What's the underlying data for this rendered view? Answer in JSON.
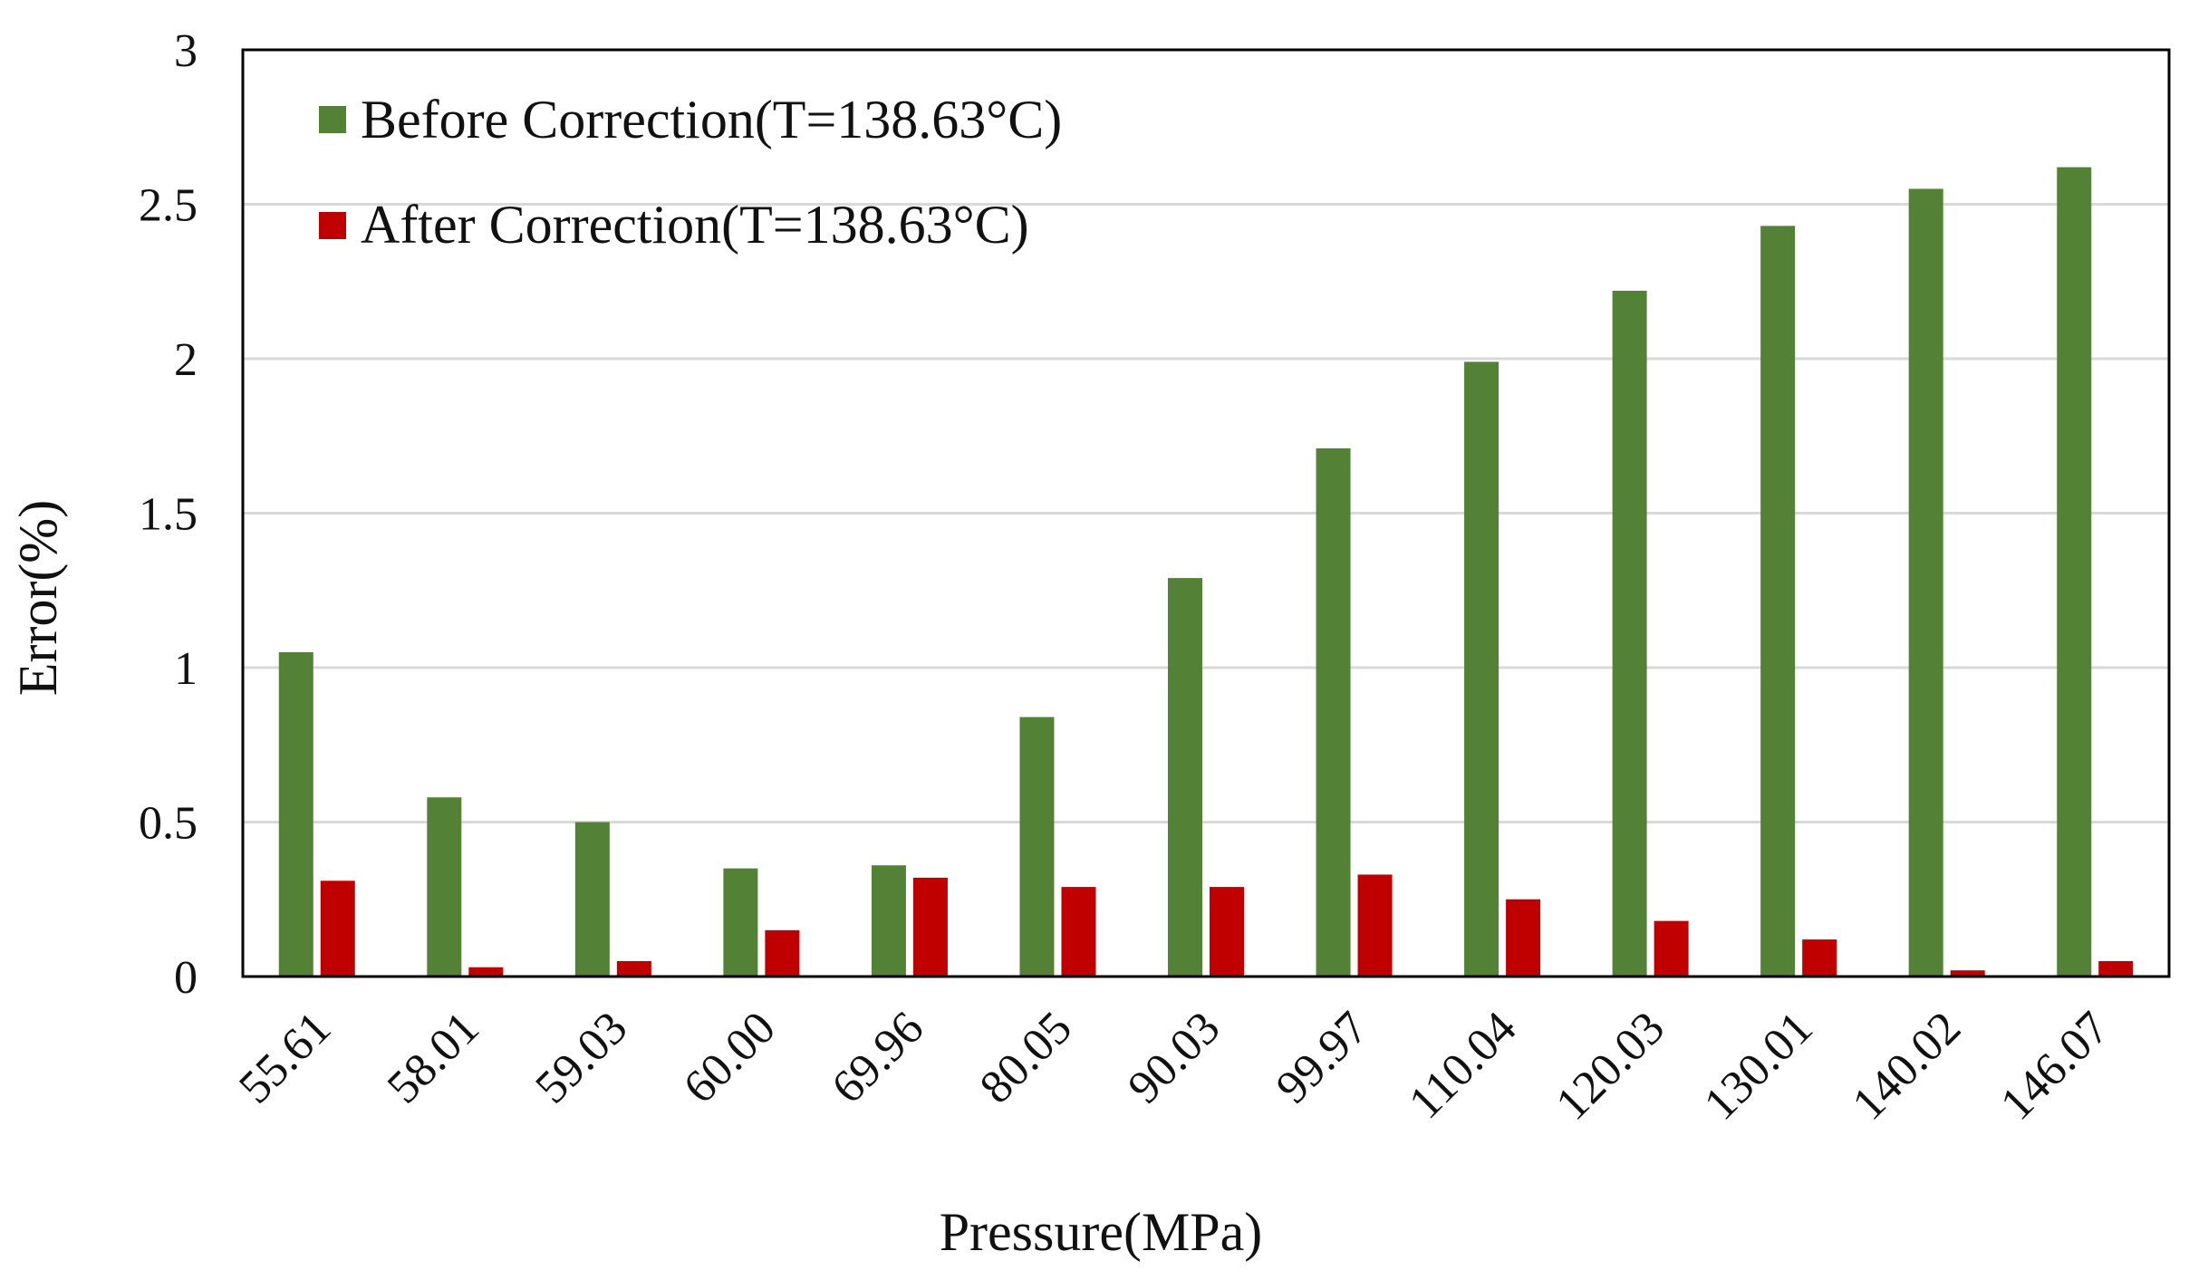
{
  "colors": {
    "before": "#538135",
    "after": "#C00000",
    "grid": "#D9D9D9",
    "axis": "#000000",
    "background": "#FFFFFF"
  },
  "legend": {
    "before_label": "Before Correction(T=138.63°C)",
    "after_label": "After Correction(T=138.63°C)"
  },
  "chart_data": {
    "type": "bar",
    "title": "",
    "xlabel": "Pressure(MPa)",
    "ylabel": "Error(%)",
    "ylim": [
      0,
      3
    ],
    "yticks": [
      "0",
      "0.5",
      "1",
      "1.5",
      "2",
      "2.5",
      "3"
    ],
    "grid": true,
    "legend_position": "top-left",
    "categories": [
      "55.61",
      "58.01",
      "59.03",
      "60.00",
      "69.96",
      "80.05",
      "90.03",
      "99.97",
      "110.04",
      "120.03",
      "130.01",
      "140.02",
      "146.07"
    ],
    "series": [
      {
        "name": "Before Correction(T=138.63°C)",
        "values": [
          1.05,
          0.58,
          0.5,
          0.35,
          0.36,
          0.84,
          1.29,
          1.71,
          1.99,
          2.22,
          2.43,
          2.55,
          2.62
        ]
      },
      {
        "name": "After Correction(T=138.63°C)",
        "values": [
          0.31,
          0.03,
          0.05,
          0.15,
          0.32,
          0.29,
          0.29,
          0.33,
          0.25,
          0.18,
          0.12,
          0.02,
          0.05
        ]
      }
    ]
  }
}
